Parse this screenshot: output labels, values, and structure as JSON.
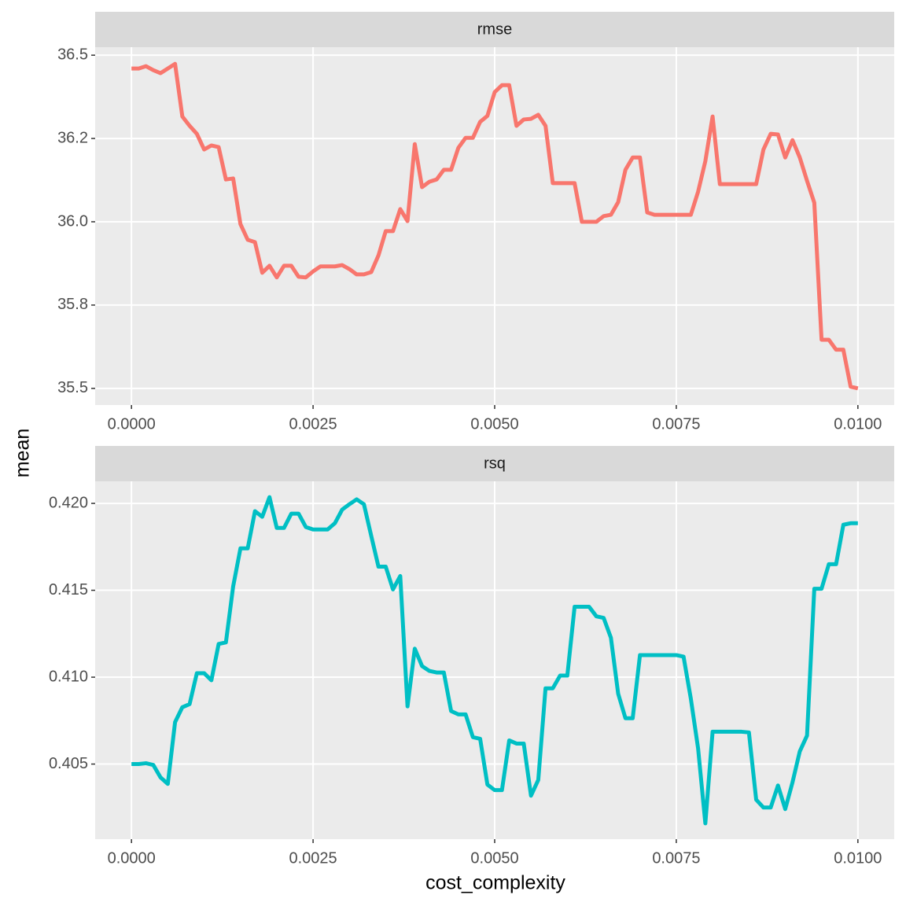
{
  "chart_data": [
    {
      "type": "line",
      "title": "rmse",
      "color": "#F8766D",
      "grid": true,
      "x": [
        0,
        0.0001,
        0.0002,
        0.0003,
        0.0004,
        0.0005,
        0.0006,
        0.0007,
        0.0008,
        0.0009,
        0.001,
        0.0011,
        0.0012,
        0.0013,
        0.0014,
        0.0015,
        0.0016,
        0.0017,
        0.0018,
        0.0019,
        0.002,
        0.0021,
        0.0022,
        0.0023,
        0.0024,
        0.0025,
        0.0026,
        0.0027,
        0.0028,
        0.0029,
        0.003,
        0.0031,
        0.0032,
        0.0033,
        0.0034,
        0.0035,
        0.0036,
        0.0037,
        0.0038,
        0.0039,
        0.004,
        0.0041,
        0.0042,
        0.0043,
        0.0044,
        0.0045,
        0.0046,
        0.0047,
        0.0048,
        0.0049,
        0.005,
        0.0051,
        0.0052,
        0.0053,
        0.0054,
        0.0055,
        0.0056,
        0.0057,
        0.0058,
        0.0059,
        0.006,
        0.0061,
        0.0062,
        0.0063,
        0.0064,
        0.0065,
        0.0066,
        0.0067,
        0.0068,
        0.0069,
        0.007,
        0.0071,
        0.0072,
        0.0073,
        0.0074,
        0.0075,
        0.0076,
        0.0077,
        0.0078,
        0.0079,
        0.008,
        0.0081,
        0.0082,
        0.0083,
        0.0084,
        0.0085,
        0.0086,
        0.0087,
        0.0088,
        0.0089,
        0.009,
        0.0091,
        0.0092,
        0.0093,
        0.0094,
        0.0095,
        0.0096,
        0.0097,
        0.0098,
        0.0099,
        0.01
      ],
      "values": [
        36.46,
        36.46,
        36.467,
        36.455,
        36.446,
        36.46,
        36.474,
        36.316,
        36.288,
        36.264,
        36.217,
        36.229,
        36.224,
        36.127,
        36.13,
        35.993,
        35.946,
        35.939,
        35.847,
        35.868,
        35.833,
        35.868,
        35.868,
        35.835,
        35.833,
        35.851,
        35.866,
        35.866,
        35.866,
        35.87,
        35.858,
        35.842,
        35.842,
        35.849,
        35.899,
        35.972,
        35.972,
        36.038,
        36.002,
        36.233,
        36.104,
        36.12,
        36.127,
        36.156,
        36.156,
        36.222,
        36.252,
        36.252,
        36.3,
        36.318,
        36.389,
        36.41,
        36.41,
        36.288,
        36.307,
        36.309,
        36.321,
        36.288,
        36.116,
        36.116,
        36.116,
        36.116,
        36.0,
        36.0,
        36.0,
        36.017,
        36.021,
        36.059,
        36.156,
        36.193,
        36.193,
        36.028,
        36.021,
        36.021,
        36.021,
        36.021,
        36.021,
        36.021,
        36.09,
        36.182,
        36.316,
        36.113,
        36.113,
        36.113,
        36.113,
        36.113,
        36.113,
        36.217,
        36.264,
        36.262,
        36.193,
        36.245,
        36.193,
        36.123,
        36.057,
        35.646,
        35.646,
        35.616,
        35.616,
        35.505,
        35.5
      ],
      "xlim": [
        -0.0005,
        0.0105
      ],
      "ylim": [
        35.45,
        36.524
      ],
      "xticks": [
        {
          "value": 0,
          "label": "0.0000"
        },
        {
          "value": 0.0025,
          "label": "0.0025"
        },
        {
          "value": 0.005,
          "label": "0.0050"
        },
        {
          "value": 0.0075,
          "label": "0.0075"
        },
        {
          "value": 0.01,
          "label": "0.0100"
        }
      ],
      "yticks": [
        35.5,
        {
          "value": 35.75,
          "label": "35.8"
        },
        {
          "value": 36,
          "label": "36.0"
        },
        {
          "value": 36.25,
          "label": "36.2"
        },
        36.5
      ]
    },
    {
      "type": "line",
      "title": "rsq",
      "color": "#00BFC4",
      "grid": true,
      "x": [
        0,
        0.0001,
        0.0002,
        0.0003,
        0.0004,
        0.0005,
        0.0006,
        0.0007,
        0.0008,
        0.0009,
        0.001,
        0.0011,
        0.0012,
        0.0013,
        0.0014,
        0.0015,
        0.0016,
        0.0017,
        0.0018,
        0.0019,
        0.002,
        0.0021,
        0.0022,
        0.0023,
        0.0024,
        0.0025,
        0.0026,
        0.0027,
        0.0028,
        0.0029,
        0.003,
        0.0031,
        0.0032,
        0.0033,
        0.0034,
        0.0035,
        0.0036,
        0.0037,
        0.0038,
        0.0039,
        0.004,
        0.0041,
        0.0042,
        0.0043,
        0.0044,
        0.0045,
        0.0046,
        0.0047,
        0.0048,
        0.0049,
        0.005,
        0.0051,
        0.0052,
        0.0053,
        0.0054,
        0.0055,
        0.0056,
        0.0057,
        0.0058,
        0.0059,
        0.006,
        0.0061,
        0.0062,
        0.0063,
        0.0064,
        0.0065,
        0.0066,
        0.0067,
        0.0068,
        0.0069,
        0.007,
        0.0071,
        0.0072,
        0.0073,
        0.0074,
        0.0075,
        0.0076,
        0.0077,
        0.0078,
        0.0079,
        0.008,
        0.0081,
        0.0082,
        0.0083,
        0.0084,
        0.0085,
        0.0086,
        0.0087,
        0.0088,
        0.0089,
        0.009,
        0.0091,
        0.0092,
        0.0093,
        0.0094,
        0.0095,
        0.0096,
        0.0097,
        0.0098,
        0.0099,
        0.01
      ],
      "values": [
        0.405,
        0.405,
        0.40505,
        0.40495,
        0.40423,
        0.40386,
        0.40741,
        0.40827,
        0.40845,
        0.41023,
        0.41023,
        0.40982,
        0.41191,
        0.412,
        0.41523,
        0.41741,
        0.41741,
        0.41955,
        0.41923,
        0.42036,
        0.41859,
        0.41859,
        0.41941,
        0.41941,
        0.41864,
        0.4185,
        0.4185,
        0.4185,
        0.41886,
        0.41964,
        0.41995,
        0.42023,
        0.41995,
        0.41814,
        0.41636,
        0.41636,
        0.41505,
        0.41582,
        0.40832,
        0.41164,
        0.41064,
        0.41036,
        0.41027,
        0.41027,
        0.40805,
        0.40786,
        0.40786,
        0.40655,
        0.40645,
        0.40382,
        0.4035,
        0.4035,
        0.40636,
        0.40618,
        0.40618,
        0.40318,
        0.40409,
        0.40936,
        0.40936,
        0.41009,
        0.41009,
        0.41405,
        0.41405,
        0.41405,
        0.4135,
        0.41341,
        0.41227,
        0.40905,
        0.40764,
        0.40764,
        0.41127,
        0.41127,
        0.41127,
        0.41127,
        0.41127,
        0.41127,
        0.41118,
        0.40877,
        0.40591,
        0.40159,
        0.40686,
        0.40686,
        0.40686,
        0.40686,
        0.40686,
        0.40682,
        0.40295,
        0.4025,
        0.4025,
        0.40377,
        0.40241,
        0.40395,
        0.40573,
        0.40664,
        0.41509,
        0.41509,
        0.4165,
        0.4165,
        0.41877,
        0.41886,
        0.41886
      ],
      "xlim": [
        -0.0005,
        0.0105
      ],
      "ylim": [
        0.40068,
        0.42127
      ],
      "xticks": [
        {
          "value": 0,
          "label": "0.0000"
        },
        {
          "value": 0.0025,
          "label": "0.0025"
        },
        {
          "value": 0.005,
          "label": "0.0050"
        },
        {
          "value": 0.0075,
          "label": "0.0075"
        },
        {
          "value": 0.01,
          "label": "0.0100"
        }
      ],
      "yticks": [
        0.405,
        {
          "value": 0.41,
          "label": "0.410"
        },
        0.415,
        {
          "value": 0.42,
          "label": "0.420"
        }
      ]
    }
  ],
  "x_label": "cost_complexity",
  "y_label": "mean"
}
